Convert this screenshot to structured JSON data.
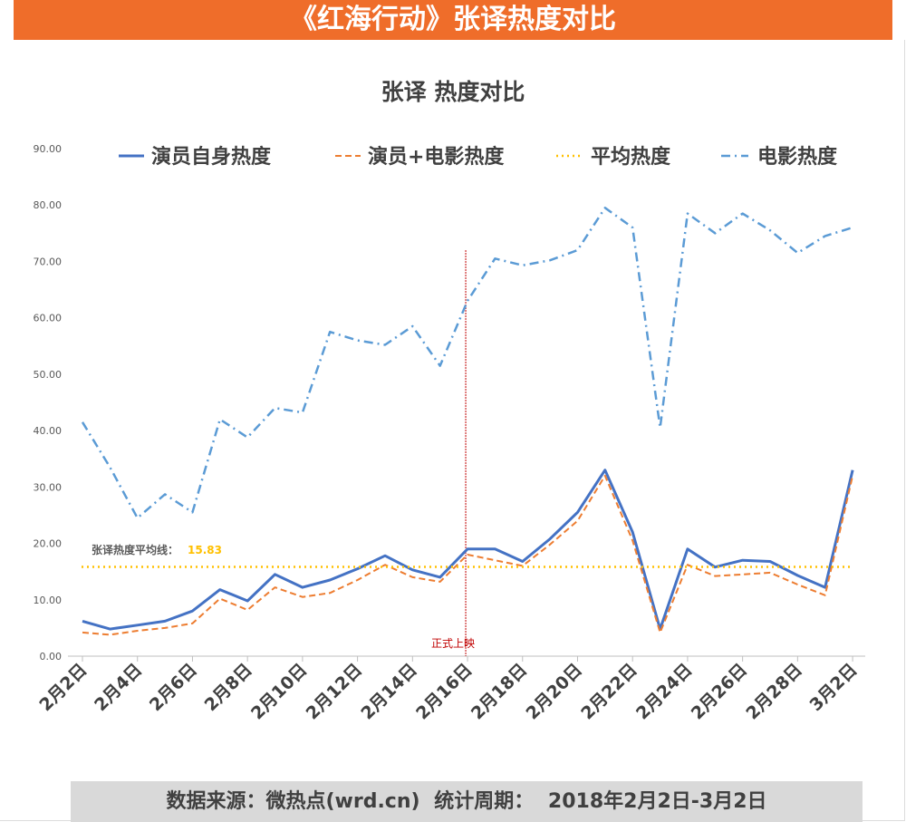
{
  "banner": {
    "title": "《红海行动》张译热度对比"
  },
  "footer": {
    "source_label": "数据来源：微热点(wrd.cn)",
    "period_label": "统计周期：",
    "period_value": "2018年2月2日-3月2日"
  },
  "colors": {
    "banner": "#ef6d2a",
    "actor": "#4472c4",
    "actor_plus_movie": "#ed7d31",
    "average": "#ffc000",
    "movie": "#5b9bd5",
    "release_line": "#c00000"
  },
  "chart_data": {
    "type": "line",
    "title": "张译 热度对比",
    "xlabel": "",
    "ylabel": "",
    "ylim": [
      0,
      90
    ],
    "yticks": [
      "0.00",
      "10.00",
      "20.00",
      "30.00",
      "40.00",
      "50.00",
      "60.00",
      "70.00",
      "80.00",
      "90.00"
    ],
    "x": [
      "2月2日",
      "2月3日",
      "2月4日",
      "2月5日",
      "2月6日",
      "2月7日",
      "2月8日",
      "2月9日",
      "2月10日",
      "2月11日",
      "2月12日",
      "2月13日",
      "2月14日",
      "2月15日",
      "2月16日",
      "2月17日",
      "2月18日",
      "2月19日",
      "2月20日",
      "2月21日",
      "2月22日",
      "2月23日",
      "2月24日",
      "2月25日",
      "2月26日",
      "2月27日",
      "2月28日",
      "3月1日",
      "3月2日"
    ],
    "xtick_labels": [
      "2月2日",
      "2月4日",
      "2月6日",
      "2月8日",
      "2月10日",
      "2月12日",
      "2月14日",
      "2月16日",
      "2月18日",
      "2月20日",
      "2月22日",
      "2月24日",
      "2月26日",
      "2月28日",
      "3月2日"
    ],
    "series": [
      {
        "name": "演员自身热度",
        "style": "solid",
        "values": [
          6.2,
          4.8,
          5.5,
          6.2,
          8.0,
          11.8,
          9.8,
          14.5,
          12.2,
          13.5,
          15.5,
          17.8,
          15.3,
          14.0,
          19.0,
          19.0,
          16.8,
          20.8,
          25.5,
          33.0,
          22.0,
          4.8,
          19.0,
          15.8,
          17.0,
          16.8,
          14.3,
          12.2,
          33.0
        ]
      },
      {
        "name": "演员+电影热度",
        "style": "dashed",
        "values": [
          4.2,
          3.8,
          4.5,
          5.0,
          5.8,
          10.2,
          8.2,
          12.2,
          10.5,
          11.2,
          13.5,
          16.2,
          14.0,
          13.2,
          18.0,
          17.0,
          16.0,
          19.8,
          24.0,
          32.0,
          20.5,
          4.2,
          16.2,
          14.2,
          14.5,
          14.8,
          12.7,
          10.8,
          32.0
        ]
      },
      {
        "name": "平均热度",
        "style": "dotted",
        "values": [
          15.83,
          15.83,
          15.83,
          15.83,
          15.83,
          15.83,
          15.83,
          15.83,
          15.83,
          15.83,
          15.83,
          15.83,
          15.83,
          15.83,
          15.83,
          15.83,
          15.83,
          15.83,
          15.83,
          15.83,
          15.83,
          15.83,
          15.83,
          15.83,
          15.83,
          15.83,
          15.83,
          15.83,
          15.83
        ]
      },
      {
        "name": "电影热度",
        "style": "dashdot",
        "values": [
          41.5,
          33.5,
          24.5,
          28.7,
          25.5,
          42.0,
          38.8,
          44.0,
          43.2,
          57.5,
          56.0,
          55.2,
          58.5,
          51.5,
          63.0,
          70.5,
          69.3,
          70.2,
          72.0,
          79.5,
          76.0,
          40.5,
          78.5,
          75.0,
          78.5,
          75.5,
          71.5,
          74.5,
          76.0
        ]
      }
    ],
    "average_annotation": {
      "label": "张译热度平均线：",
      "value": "15.83"
    },
    "release_annotation": {
      "label": "正式上映",
      "x": "2月16日"
    },
    "legend": "top"
  }
}
